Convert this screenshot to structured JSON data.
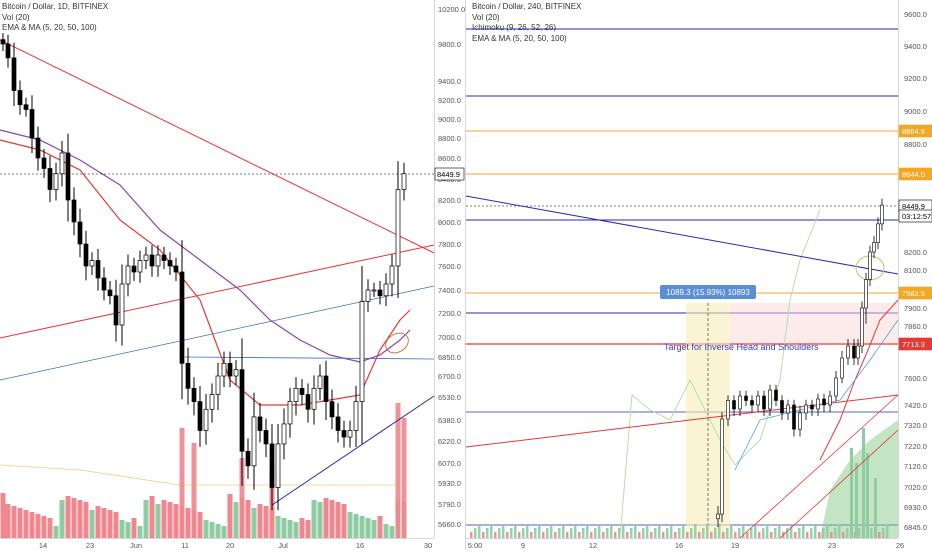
{
  "charts": [
    {
      "symbol": "Bitcoin / Dollar, 1D, BITFINEX",
      "indicators": [
        "Vol (20)",
        "EMA & MA (5, 20, 50, 100)"
      ],
      "y_ticks": [
        10200.0,
        9800.0,
        9400.0,
        9200.0,
        9000.0,
        8800.0,
        8600.0,
        8400.0,
        8200.0,
        8000.0,
        7800.0,
        7600.0,
        7400.0,
        7200.0,
        7000.0,
        6850.0,
        6700.0,
        6530.0,
        6380.0,
        6220.0,
        6070.0,
        5930.0,
        5790.0,
        5660.0
      ],
      "x_ticks": [
        "14",
        "23",
        "Jun",
        "11",
        "20",
        "Jul",
        "16",
        "30"
      ],
      "last_price": "8449.9"
    },
    {
      "symbol": "Bitcoin / Dollar, 240, BITFINEX",
      "indicators": [
        "Vol (20)",
        "Ichimoku (9, 26, 52, 26)",
        "EMA & MA (5, 20, 50, 100)"
      ],
      "y_ticks": [
        9600.0,
        9400.0,
        9200.0,
        9000.0,
        8800.0,
        8600.0,
        8200.0,
        8100.0,
        7900.0,
        7860.0,
        7600.0,
        7420.0,
        7320.0,
        7220.0,
        7120.0,
        7020.0,
        6930.0,
        6845.0
      ],
      "x_ticks": [
        "5:00",
        "9",
        "12",
        "16",
        "19",
        "23",
        "26"
      ],
      "price_labels": [
        {
          "text": "8864.5",
          "color": "#f5a623"
        },
        {
          "text": "8644.0",
          "color": "#f5a623"
        },
        {
          "text": "8449.9",
          "color": "#222222"
        },
        {
          "text": "03:12:57",
          "color": "#222222"
        },
        {
          "text": "7982.5",
          "color": "#f5a623"
        },
        {
          "text": "7713.3",
          "color": "#e53935"
        }
      ],
      "measure_label": "1089.3 (15.93%) 10893",
      "annotation": "Target for Inverse Head and Shoulders"
    }
  ],
  "colors": {
    "up": "#ffffff",
    "down": "#000000",
    "vol_up": "#8fcca4",
    "vol_down": "#f0868e",
    "ema_red": "#e53935",
    "ma_purple": "#8e44ad",
    "trend_red": "#e53935",
    "trend_blue": "#3a6fc4",
    "trend_navy": "#2a2ab8",
    "fib_orange": "#f5a623",
    "cloud_green": "#7cc57c"
  }
}
